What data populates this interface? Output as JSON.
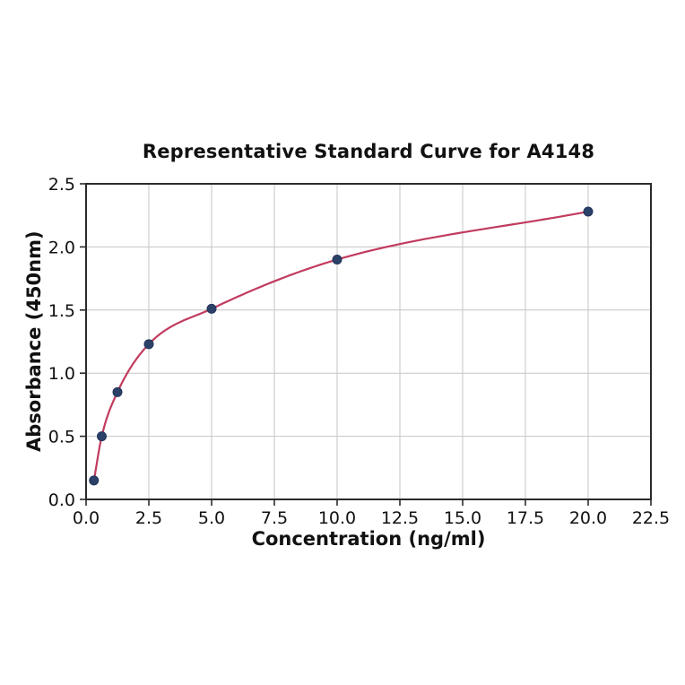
{
  "chart_data": {
    "type": "line",
    "title": "Representative Standard Curve for A4148",
    "xlabel": "Concentration (ng/ml)",
    "ylabel": "Absorbance (450nm)",
    "x": [
      0.3125,
      0.625,
      1.25,
      2.5,
      5.0,
      10.0,
      20.0
    ],
    "y": [
      0.15,
      0.5,
      0.85,
      1.23,
      1.51,
      1.9,
      2.28
    ],
    "xlim": [
      0,
      22.5
    ],
    "ylim": [
      0,
      2.5
    ],
    "xticks": [
      0.0,
      2.5,
      5.0,
      7.5,
      10.0,
      12.5,
      15.0,
      17.5,
      20.0,
      22.5
    ],
    "xtick_labels": [
      "0.0",
      "2.5",
      "5.0",
      "7.5",
      "10.0",
      "12.5",
      "15.0",
      "17.5",
      "20.0",
      "22.5"
    ],
    "yticks": [
      0.0,
      0.5,
      1.0,
      1.5,
      2.0,
      2.5
    ],
    "ytick_labels": [
      "0.0",
      "0.5",
      "1.0",
      "1.5",
      "2.0",
      "2.5"
    ],
    "grid": true,
    "legend": "none",
    "line_color": "#c13b5e",
    "marker_color": "#2b4168",
    "marker_edge_color": "#22345a",
    "grid_color": "#c6c6c6",
    "frame_color": "#2b2b2b",
    "tick_color": "#2b2b2b"
  }
}
